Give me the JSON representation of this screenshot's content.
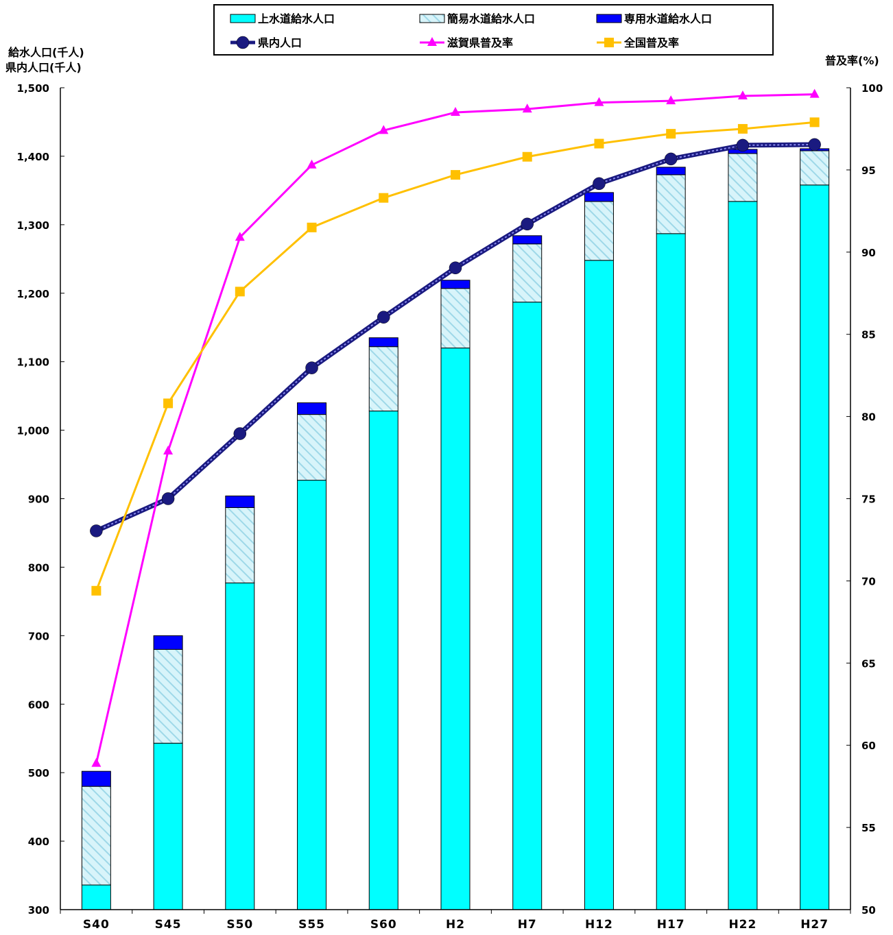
{
  "chart_data": {
    "type": "bar",
    "categories": [
      "S40",
      "S45",
      "S50",
      "S55",
      "S60",
      "H2",
      "H7",
      "H12",
      "H17",
      "H22",
      "H27"
    ],
    "y_left": {
      "label_line1": "給水人口(千人)",
      "label_line2": "県内人口(千人)",
      "range": [
        300,
        1500
      ],
      "ticks": [
        "1,500",
        "1,400",
        "1,300",
        "1,200",
        "1,100",
        "1,000",
        "900",
        "800",
        "700",
        "600",
        "500",
        "400",
        "300"
      ]
    },
    "y_right": {
      "label": "普及率(%)",
      "range": [
        50,
        100
      ],
      "ticks": [
        "100",
        "95",
        "90",
        "85",
        "80",
        "75",
        "70",
        "65",
        "60",
        "55",
        "50"
      ]
    },
    "stacked_series": [
      {
        "name": "上水道給水人口",
        "color": "#00FFFF",
        "values": [
          336,
          543,
          777,
          927,
          1028,
          1120,
          1187,
          1248,
          1287,
          1334,
          1358
        ]
      },
      {
        "name": "簡易水道給水人口",
        "color": "#CCECF4",
        "values": [
          144,
          137,
          110,
          96,
          94,
          87,
          85,
          86,
          86,
          70,
          50
        ]
      },
      {
        "name": "専用水道給水人口",
        "color": "#0000FF",
        "values": [
          22,
          20,
          17,
          17,
          13,
          12,
          12,
          13,
          11,
          6,
          3
        ]
      }
    ],
    "population_series": {
      "name": "県内人口",
      "color": "#1A1A80",
      "values": [
        853,
        900,
        995,
        1091,
        1165,
        1237,
        1301,
        1360,
        1396,
        1416,
        1417
      ]
    },
    "rate_series": [
      {
        "name": "滋賀県普及率",
        "color": "#FF00FF",
        "marker": "triangle",
        "values": [
          58.9,
          77.9,
          90.9,
          95.3,
          97.4,
          98.5,
          98.7,
          99.1,
          99.2,
          99.5,
          99.6
        ]
      },
      {
        "name": "全国普及率",
        "color": "#FFC000",
        "marker": "square",
        "values": [
          69.4,
          80.8,
          87.6,
          91.5,
          93.3,
          94.7,
          95.8,
          96.6,
          97.2,
          97.5,
          97.9
        ]
      }
    ],
    "legend": {
      "position": "top",
      "items": [
        "上水道給水人口",
        "簡易水道給水人口",
        "専用水道給水人口",
        "県内人口",
        "滋賀県普及率",
        "全国普及率"
      ]
    },
    "grid": false
  }
}
